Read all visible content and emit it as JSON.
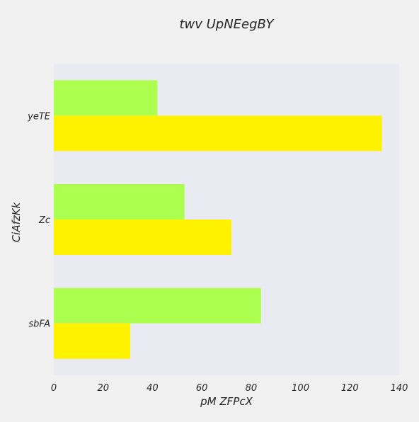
{
  "chart_data": {
    "type": "bar",
    "orientation": "horizontal",
    "title": "twv UpNEegBY",
    "xlabel": "pM ZFPcX",
    "ylabel": "CiAfzKk",
    "categories": [
      "yeTE",
      "Zc",
      "sbFA"
    ],
    "series": [
      {
        "color": "#adff4f",
        "values": [
          42,
          53,
          84
        ]
      },
      {
        "color": "#fff200",
        "values": [
          133,
          72,
          31
        ]
      }
    ],
    "xlim": [
      0,
      140
    ],
    "xticks": [
      "0",
      "20",
      "40",
      "60",
      "80",
      "100",
      "120",
      "140"
    ],
    "grid": false,
    "plot_background": "#eaeaf2",
    "page_background": "#f1f1f1"
  }
}
